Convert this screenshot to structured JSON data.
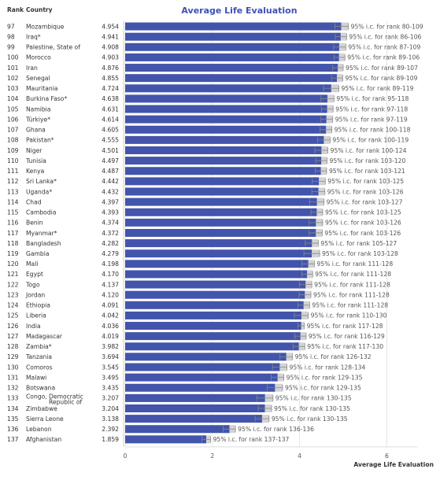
{
  "headers": {
    "rank": "Rank",
    "country": "Country"
  },
  "chart_data": {
    "type": "bar",
    "orientation": "horizontal",
    "title": "Average Life Evaluation",
    "xlabel": "Average Life Evaluation",
    "xlim": [
      0,
      6.7
    ],
    "xticks": [
      0,
      2,
      4,
      6
    ],
    "grid": "vertical",
    "colors": {
      "bar": "#4254ab",
      "ci_band": "#d3d3d3",
      "whisker": "#8a8a8a",
      "divider": "#cfcfcf"
    },
    "rows": [
      {
        "rank": "97",
        "country": "Mozambique",
        "value": "4.954",
        "ci_label": "95% i.c. for rank 80-109",
        "ci_low": 4.81,
        "ci_high": 5.12
      },
      {
        "rank": "98",
        "country": "Iraq*",
        "value": "4.941",
        "ci_label": "95% i.c. for rank 86-106",
        "ci_low": 4.82,
        "ci_high": 5.08
      },
      {
        "rank": "99",
        "country": "Palestine, State of",
        "value": "4.908",
        "ci_label": "95% i.c. for rank 87-109",
        "ci_low": 4.78,
        "ci_high": 5.06
      },
      {
        "rank": "100",
        "country": "Morocco",
        "value": "4.903",
        "ci_label": "95% i.c. for rank 89-106",
        "ci_low": 4.79,
        "ci_high": 5.04
      },
      {
        "rank": "101",
        "country": "Iran",
        "value": "4.876",
        "ci_label": "95% i.c. for rank 89-107",
        "ci_low": 4.76,
        "ci_high": 5.0
      },
      {
        "rank": "102",
        "country": "Senegal",
        "value": "4.855",
        "ci_label": "95% i.c. for rank 89-109",
        "ci_low": 4.73,
        "ci_high": 4.99
      },
      {
        "rank": "103",
        "country": "Mauritania",
        "value": "4.724",
        "ci_label": "95% i.c. for rank 89-119",
        "ci_low": 4.55,
        "ci_high": 4.9
      },
      {
        "rank": "104",
        "country": "Burkina Faso*",
        "value": "4.638",
        "ci_label": "95% i.c. for rank 95-118",
        "ci_low": 4.49,
        "ci_high": 4.79
      },
      {
        "rank": "105",
        "country": "Namibia",
        "value": "4.631",
        "ci_label": "95% i.c. for rank 97-118",
        "ci_low": 4.5,
        "ci_high": 4.77
      },
      {
        "rank": "106",
        "country": "Türkiye*",
        "value": "4.614",
        "ci_label": "95% i.c. for rank 97-119",
        "ci_low": 4.49,
        "ci_high": 4.76
      },
      {
        "rank": "107",
        "country": "Ghana",
        "value": "4.605",
        "ci_label": "95% i.c. for rank 100-118",
        "ci_low": 4.47,
        "ci_high": 4.74
      },
      {
        "rank": "108",
        "country": "Pakistan*",
        "value": "4.555",
        "ci_label": "95% i.c. for rank 100-119",
        "ci_low": 4.41,
        "ci_high": 4.7
      },
      {
        "rank": "109",
        "country": "Niger",
        "value": "4.501",
        "ci_label": "95% i.c. for rank 100-124",
        "ci_low": 4.35,
        "ci_high": 4.65
      },
      {
        "rank": "110",
        "country": "Tunisia",
        "value": "4.497",
        "ci_label": "95% i.c. for rank 103-120",
        "ci_low": 4.37,
        "ci_high": 4.63
      },
      {
        "rank": "111",
        "country": "Kenya",
        "value": "4.487",
        "ci_label": "95% i.c. for rank 103-121",
        "ci_low": 4.36,
        "ci_high": 4.62
      },
      {
        "rank": "112",
        "country": "Sri Lanka*",
        "value": "4.442",
        "ci_label": "95% i.c. for rank 103-125",
        "ci_low": 4.29,
        "ci_high": 4.59
      },
      {
        "rank": "113",
        "country": "Uganda*",
        "value": "4.432",
        "ci_label": "95% i.c. for rank 103-126",
        "ci_low": 4.28,
        "ci_high": 4.58
      },
      {
        "rank": "114",
        "country": "Chad",
        "value": "4.397",
        "ci_label": "95% i.c. for rank 103-127",
        "ci_low": 4.23,
        "ci_high": 4.56
      },
      {
        "rank": "115",
        "country": "Cambodia",
        "value": "4.393",
        "ci_label": "95% i.c. for rank 103-125",
        "ci_low": 4.26,
        "ci_high": 4.53
      },
      {
        "rank": "116",
        "country": "Benin",
        "value": "4.374",
        "ci_label": "95% i.c. for rank 103-126",
        "ci_low": 4.22,
        "ci_high": 4.53
      },
      {
        "rank": "117",
        "country": "Myanmar*",
        "value": "4.372",
        "ci_label": "95% i.c. for rank 103-126",
        "ci_low": 4.22,
        "ci_high": 4.52
      },
      {
        "rank": "118",
        "country": "Bangladesh",
        "value": "4.282",
        "ci_label": "95% i.c. for rank 105-127",
        "ci_low": 4.13,
        "ci_high": 4.43
      },
      {
        "rank": "119",
        "country": "Gambia",
        "value": "4.279",
        "ci_label": "95% i.c. for rank 103-128",
        "ci_low": 4.1,
        "ci_high": 4.46
      },
      {
        "rank": "120",
        "country": "Mali",
        "value": "4.198",
        "ci_label": "95% i.c. for rank 111-128",
        "ci_low": 4.05,
        "ci_high": 4.34
      },
      {
        "rank": "121",
        "country": "Egypt",
        "value": "4.170",
        "ci_label": "95% i.c. for rank 111-128",
        "ci_low": 4.05,
        "ci_high": 4.3
      },
      {
        "rank": "122",
        "country": "Togo",
        "value": "4.137",
        "ci_label": "95% i.c. for rank 111-128",
        "ci_low": 4.0,
        "ci_high": 4.28
      },
      {
        "rank": "123",
        "country": "Jordan",
        "value": "4.120",
        "ci_label": "95% i.c. for rank 111-128",
        "ci_low": 3.99,
        "ci_high": 4.26
      },
      {
        "rank": "124",
        "country": "Ethiopia",
        "value": "4.091",
        "ci_label": "95% i.c. for rank 111-128",
        "ci_low": 3.96,
        "ci_high": 4.23
      },
      {
        "rank": "125",
        "country": "Liberia",
        "value": "4.042",
        "ci_label": "95% i.c. for rank 110-130",
        "ci_low": 3.88,
        "ci_high": 4.2
      },
      {
        "rank": "126",
        "country": "India",
        "value": "4.036",
        "ci_label": "95% i.c. for rank 117-128",
        "ci_low": 3.96,
        "ci_high": 4.11
      },
      {
        "rank": "127",
        "country": "Madagascar",
        "value": "4.019",
        "ci_label": "95% i.c. for rank 116-129",
        "ci_low": 3.89,
        "ci_high": 4.15
      },
      {
        "rank": "128",
        "country": "Zambia*",
        "value": "3.982",
        "ci_label": "95% i.c. for rank 117-130",
        "ci_low": 3.85,
        "ci_high": 4.12
      },
      {
        "rank": "129",
        "country": "Tanzania",
        "value": "3.694",
        "ci_label": "95% i.c. for rank 126-132",
        "ci_low": 3.55,
        "ci_high": 3.84
      },
      {
        "rank": "130",
        "country": "Comoros",
        "value": "3.545",
        "ci_label": "95% i.c. for rank 128-134",
        "ci_low": 3.38,
        "ci_high": 3.71
      },
      {
        "rank": "131",
        "country": "Malawi",
        "value": "3.495",
        "ci_label": "95% i.c. for rank 129-135",
        "ci_low": 3.35,
        "ci_high": 3.64
      },
      {
        "rank": "132",
        "country": "Botswana",
        "value": "3.435",
        "ci_label": "95% i.c. for rank 129-135",
        "ci_low": 3.26,
        "ci_high": 3.61
      },
      {
        "rank": "133",
        "country": "Congo, Democratic Republic of",
        "value": "3.207",
        "ci_label": "95% i.c. for rank 130-135",
        "ci_low": 3.02,
        "ci_high": 3.39
      },
      {
        "rank": "134",
        "country": "Zimbabwe",
        "value": "3.204",
        "ci_label": "95% i.c. for rank 130-135",
        "ci_low": 3.05,
        "ci_high": 3.36
      },
      {
        "rank": "135",
        "country": "Sierra Leone",
        "value": "3.138",
        "ci_label": "95% i.c. for rank 130-135",
        "ci_low": 2.98,
        "ci_high": 3.3
      },
      {
        "rank": "136",
        "country": "Lebanon",
        "value": "2.392",
        "ci_label": "95% i.c. for rank 136-136",
        "ci_low": 2.25,
        "ci_high": 2.53
      },
      {
        "rank": "137",
        "country": "Afghanistan",
        "value": "1.859",
        "ci_label": "95% i.c. for rank 137-137",
        "ci_low": 1.76,
        "ci_high": 1.96
      }
    ]
  }
}
